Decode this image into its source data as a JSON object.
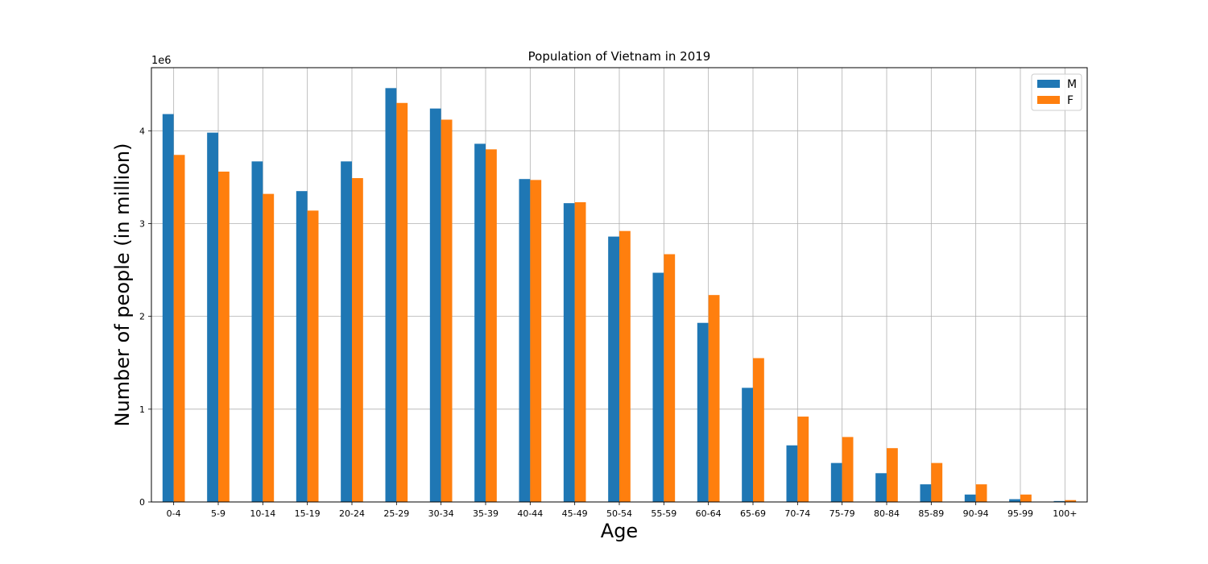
{
  "chart_data": {
    "type": "bar",
    "title": "Population of Vietnam in 2019",
    "xlabel": "Age",
    "ylabel": "Number of people (in million)",
    "y_offset_label": "1e6",
    "categories": [
      "0-4",
      "5-9",
      "10-14",
      "15-19",
      "20-24",
      "25-29",
      "30-34",
      "35-39",
      "40-44",
      "45-49",
      "50-54",
      "55-59",
      "60-64",
      "65-69",
      "70-74",
      "75-79",
      "80-84",
      "85-89",
      "90-94",
      "95-99",
      "100+"
    ],
    "series": [
      {
        "name": "M",
        "color": "#1f77b4",
        "values": [
          4180000,
          3980000,
          3670000,
          3350000,
          3670000,
          4460000,
          4240000,
          3860000,
          3480000,
          3220000,
          2860000,
          2470000,
          1930000,
          1230000,
          610000,
          420000,
          310000,
          190000,
          80000,
          30000,
          10000
        ]
      },
      {
        "name": "F",
        "color": "#ff7f0e",
        "values": [
          3740000,
          3560000,
          3320000,
          3140000,
          3490000,
          4300000,
          4120000,
          3800000,
          3470000,
          3230000,
          2920000,
          2670000,
          2230000,
          1550000,
          920000,
          700000,
          580000,
          420000,
          190000,
          80000,
          20000
        ]
      }
    ],
    "yticks": [
      0,
      1000000,
      2000000,
      3000000,
      4000000
    ],
    "ytick_labels": [
      "0",
      "1",
      "2",
      "3",
      "4"
    ],
    "ylim": [
      0,
      4680000
    ],
    "grid": true,
    "legend_position": "top-right"
  }
}
